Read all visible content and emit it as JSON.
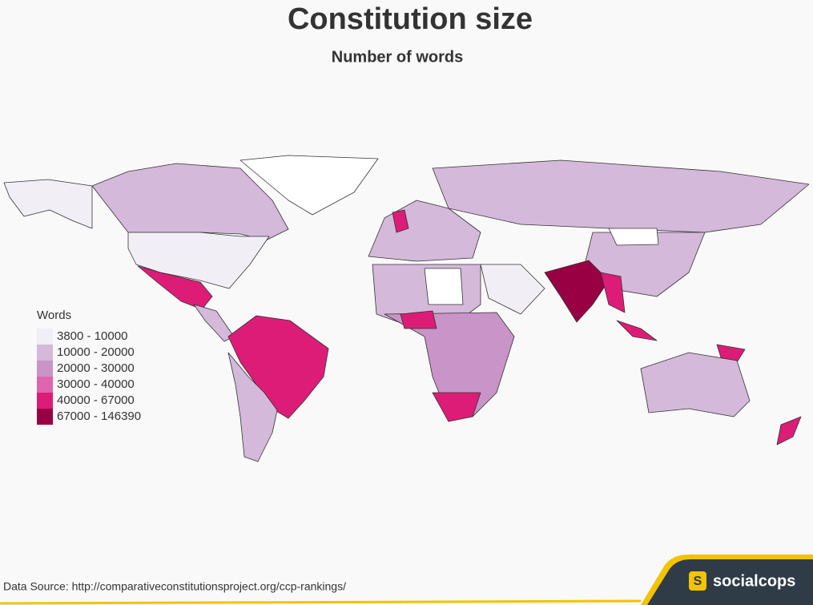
{
  "header": {
    "title": "Constitution size",
    "subtitle": "Number of words"
  },
  "legend": {
    "title": "Words",
    "items": [
      {
        "label": "3800 - 10000",
        "color": "#f1eef6"
      },
      {
        "label": "10000 - 20000",
        "color": "#d4b9da"
      },
      {
        "label": "20000 - 30000",
        "color": "#c994c7"
      },
      {
        "label": "30000 - 40000",
        "color": "#df65b0"
      },
      {
        "label": "40000 - 67000",
        "color": "#dd1c77"
      },
      {
        "label": "67000 - 146390",
        "color": "#980043"
      }
    ]
  },
  "footer": {
    "source": "Data Source: http://comparativeconstitutionsproject.org/ccp-rankings/",
    "logo": "S",
    "brand": "socialcops"
  }
}
